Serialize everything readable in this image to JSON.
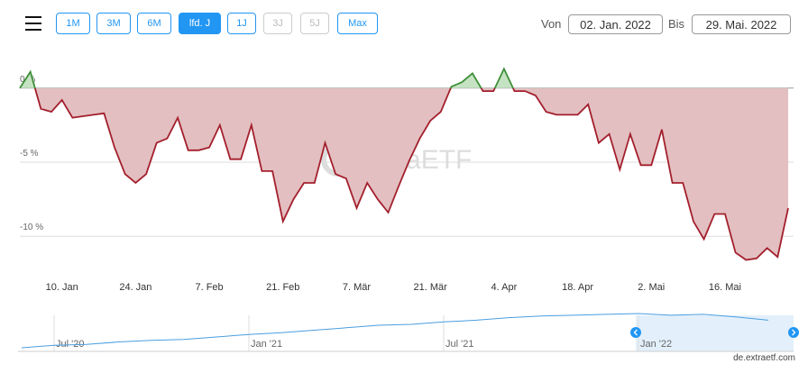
{
  "header": {
    "buttons": [
      "1M",
      "3M",
      "6M",
      "lfd. J",
      "1J",
      "3J",
      "5J",
      "Max"
    ],
    "active": 3,
    "disabled": [
      5,
      6
    ],
    "from_label": "Von",
    "from_date": "02. Jan. 2022",
    "to_label": "Bis",
    "to_date": "29. Mai. 2022"
  },
  "chart_data": {
    "type": "area",
    "categories": [
      null,
      null,
      null,
      null,
      "10. Jan",
      null,
      null,
      null,
      null,
      null,
      null,
      "24. Jan",
      null,
      null,
      null,
      null,
      null,
      null,
      "7. Feb",
      null,
      null,
      null,
      null,
      null,
      null,
      "21. Feb",
      null,
      null,
      null,
      null,
      null,
      null,
      "7. Mär",
      null,
      null,
      null,
      null,
      null,
      null,
      "21. Mär",
      null,
      null,
      null,
      null,
      null,
      null,
      "4. Apr",
      null,
      null,
      null,
      null,
      null,
      null,
      "18. Apr",
      null,
      null,
      null,
      null,
      null,
      null,
      "2. Mai",
      null,
      null,
      null,
      null,
      null,
      null,
      "16. Mai",
      null,
      null,
      null,
      null,
      null,
      null
    ],
    "values": [
      0,
      1.1,
      -1.4,
      -1.6,
      -0.8,
      -2,
      -1.9,
      -1.8,
      -1.7,
      -4,
      -5.8,
      -6.4,
      -5.8,
      -3.7,
      -3.4,
      -2,
      -4.2,
      -4.2,
      -4,
      -2.5,
      -4.8,
      -4.8,
      -2.5,
      -5.6,
      -5.6,
      -9,
      -7.5,
      -6.4,
      -6.4,
      -3.7,
      -5.8,
      -6.1,
      -8.1,
      -6.4,
      -7.5,
      -8.4,
      -6.6,
      -4.9,
      -3.4,
      -2.2,
      -1.6,
      0.1,
      0.4,
      1,
      -0.2,
      -0.2,
      1.3,
      -0.2,
      -0.2,
      -0.5,
      -1.6,
      -1.8,
      -1.8,
      -1.8,
      -1.1,
      -3.7,
      -3.1,
      -5.5,
      -3.1,
      -5.2,
      -5.2,
      -2.8,
      -6.4,
      -6.4,
      -9,
      -10.2,
      -8.5,
      -8.5,
      -11.1,
      -11.6,
      -11.5,
      -10.8,
      -11.4,
      -8.1
    ],
    "positive_color": "#3f8f3a",
    "positive_fill": "#c5e3c2",
    "negative_color": "#a31f2c",
    "negative_fill": "#e3bfc1",
    "ylim": [
      -12.3,
      2.3
    ],
    "yticks": [
      {
        "value": 0,
        "label": "0 %"
      },
      {
        "value": -5,
        "label": "-5 %"
      },
      {
        "value": -10,
        "label": "-10 %"
      }
    ],
    "grid": true,
    "watermark": "extraETF"
  },
  "navigator": {
    "categories": [
      null,
      "Jul '20",
      null,
      null,
      null,
      null,
      null,
      "Jan '21",
      null,
      null,
      null,
      null,
      null,
      "Jul '21",
      null,
      null,
      null,
      null,
      null,
      "Jan '22",
      null,
      null,
      null,
      null
    ],
    "values": [
      100,
      103,
      104,
      107,
      109,
      110,
      113,
      116,
      118,
      121,
      124,
      127,
      128,
      131,
      133,
      136,
      138,
      139,
      140,
      141,
      139,
      140,
      137,
      133
    ],
    "selected_from": 19,
    "color": "#4a9ee0"
  },
  "credit": "de.extraetf.com"
}
